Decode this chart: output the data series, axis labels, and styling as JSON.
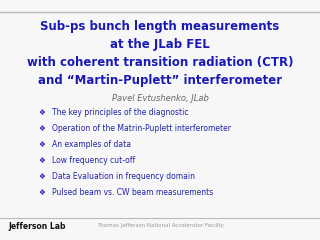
{
  "title_line1": "Sub-ps bunch length measurements",
  "title_line2": "at the JLab FEL",
  "title_line3": "with coherent transition radiation (CTR)",
  "title_line4": "and “Martin-Puplett” interferometer",
  "author": "Pavel Evtushenko, JLab",
  "bullets": [
    "The key principles of the diagnostic",
    "Operation of the Matrin-Puplett interferometer",
    "An examples of data",
    "Low frequency cut-off",
    "Data Evaluation in frequency domain",
    "Pulsed beam vs. CW beam measurements"
  ],
  "title_color": "#1a1ab8",
  "bullet_color": "#2222aa",
  "author_color": "#666666",
  "bg_color": "#f7f7f7",
  "footer_text": "Thomas Jefferson National Accelerator Facility",
  "footer_left": "Jefferson Lab",
  "footer_color": "#999999",
  "separator_color": "#bbbbbb"
}
